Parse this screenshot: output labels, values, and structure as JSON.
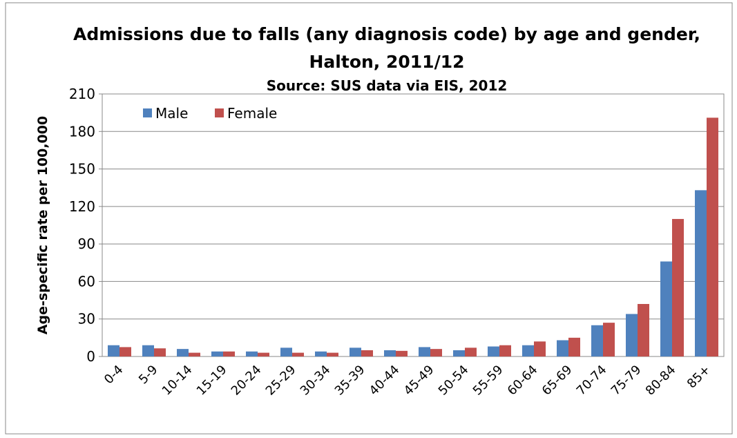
{
  "chart_data": {
    "type": "bar",
    "title": "Admissions due to falls (any diagnosis code) by age and gender,",
    "subtitle": "Halton, 2011/12",
    "source": "Source: SUS data via EIS, 2012",
    "y_label": "Age-specific rate per 100,000",
    "categories": [
      "0-4",
      "5-9",
      "10-14",
      "15-19",
      "20-24",
      "25-29",
      "30-34",
      "35-39",
      "40-44",
      "45-49",
      "50-54",
      "55-59",
      "60-64",
      "65-69",
      "70-74",
      "75-79",
      "80-84",
      "85+"
    ],
    "series": [
      {
        "name": "Male",
        "color": "#4f81bd",
        "values": [
          9,
          9,
          6,
          4,
          4,
          7,
          4,
          7,
          5,
          7.5,
          5,
          8,
          9,
          13,
          25,
          34,
          76,
          133
        ]
      },
      {
        "name": "Female",
        "color": "#c0504d",
        "values": [
          7.5,
          6.5,
          3,
          4,
          3,
          3,
          3,
          5,
          4.5,
          6,
          7,
          9,
          12,
          15,
          27,
          42,
          110,
          191
        ]
      }
    ],
    "ylim": [
      0,
      210
    ],
    "yticks": [
      0,
      30,
      60,
      90,
      120,
      150,
      180,
      210
    ],
    "grid": true,
    "legend": "top-left"
  }
}
